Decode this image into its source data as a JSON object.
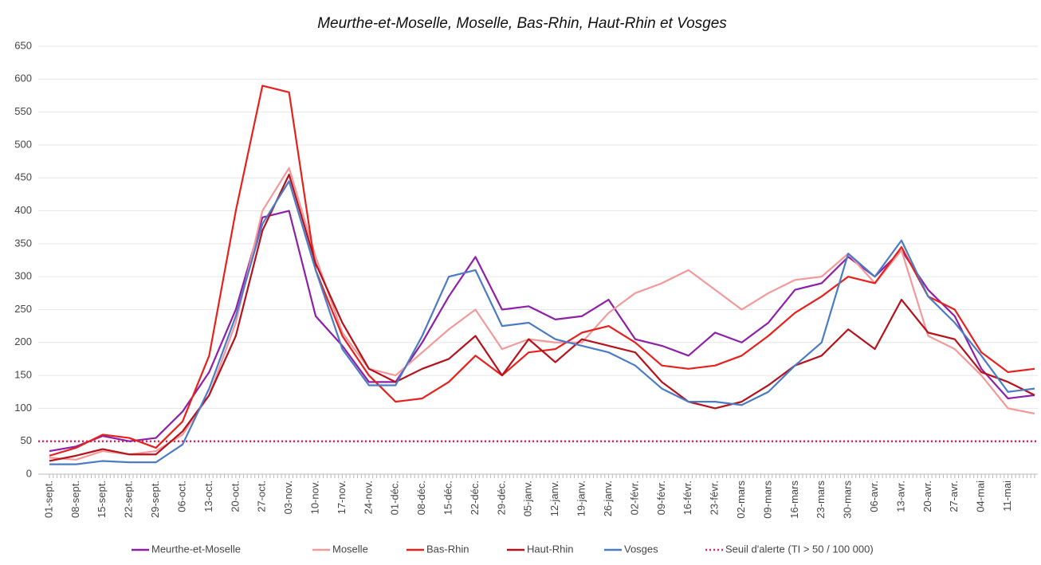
{
  "chart_data": {
    "type": "line",
    "title": "Meurthe-et-Moselle, Moselle, Bas-Rhin, Haut-Rhin et Vosges",
    "categories": [
      "01-sept.",
      "08-sept.",
      "15-sept.",
      "22-sept.",
      "29-sept.",
      "06-oct.",
      "13-oct.",
      "20-oct.",
      "27-oct.",
      "03-nov.",
      "10-nov.",
      "17-nov.",
      "24-nov.",
      "01-déc.",
      "08-déc.",
      "15-déc.",
      "22-déc.",
      "29-déc.",
      "05-janv.",
      "12-janv.",
      "19-janv.",
      "26-janv.",
      "02-févr.",
      "09-févr.",
      "16-févr.",
      "23-févr.",
      "02-mars",
      "09-mars",
      "16-mars",
      "23-mars",
      "30-mars",
      "06-avr.",
      "13-avr.",
      "20-avr.",
      "27-avr.",
      "04-mai",
      "11-mai",
      null
    ],
    "series": [
      {
        "name": "Meurthe-et-Moselle",
        "color": "#8e1fa8",
        "values": [
          35,
          42,
          58,
          50,
          55,
          95,
          155,
          250,
          390,
          400,
          240,
          195,
          140,
          140,
          200,
          270,
          330,
          250,
          255,
          235,
          240,
          265,
          205,
          195,
          180,
          215,
          200,
          230,
          280,
          290,
          330,
          300,
          340,
          280,
          240,
          160,
          115,
          120
        ]
      },
      {
        "name": "Moselle",
        "color": "#f4999a",
        "values": [
          25,
          22,
          35,
          30,
          35,
          60,
          120,
          230,
          400,
          465,
          330,
          215,
          160,
          150,
          185,
          220,
          250,
          190,
          205,
          200,
          200,
          245,
          275,
          290,
          310,
          280,
          250,
          275,
          295,
          300,
          335,
          290,
          340,
          210,
          190,
          150,
          100,
          92
        ]
      },
      {
        "name": "Bas-Rhin",
        "color": "#e8201c",
        "values": [
          28,
          40,
          60,
          55,
          40,
          80,
          180,
          400,
          590,
          580,
          310,
          210,
          150,
          110,
          115,
          140,
          180,
          150,
          185,
          190,
          215,
          225,
          200,
          165,
          160,
          165,
          180,
          210,
          245,
          270,
          300,
          290,
          345,
          270,
          250,
          185,
          155,
          160
        ]
      },
      {
        "name": "Haut-Rhin",
        "color": "#b5121b",
        "values": [
          20,
          28,
          38,
          30,
          30,
          65,
          120,
          210,
          370,
          455,
          320,
          230,
          160,
          140,
          160,
          175,
          210,
          150,
          205,
          170,
          205,
          195,
          185,
          140,
          110,
          100,
          110,
          135,
          165,
          180,
          220,
          190,
          265,
          215,
          205,
          155,
          140,
          120
        ]
      },
      {
        "name": "Vosges",
        "color": "#4a7bc4",
        "values": [
          15,
          15,
          20,
          18,
          18,
          45,
          130,
          240,
          380,
          445,
          310,
          190,
          135,
          135,
          210,
          300,
          310,
          225,
          230,
          205,
          195,
          185,
          165,
          130,
          110,
          110,
          105,
          125,
          165,
          200,
          335,
          300,
          355,
          270,
          230,
          180,
          125,
          130
        ]
      }
    ],
    "threshold": {
      "name": "Seuil d'alerte (TI > 50 / 100 000)",
      "value": 50,
      "color": "#e0245e"
    },
    "ylim": [
      0,
      650
    ],
    "yticks": [
      0,
      50,
      100,
      150,
      200,
      250,
      300,
      350,
      400,
      450,
      500,
      550,
      600,
      650
    ],
    "grid": true
  }
}
